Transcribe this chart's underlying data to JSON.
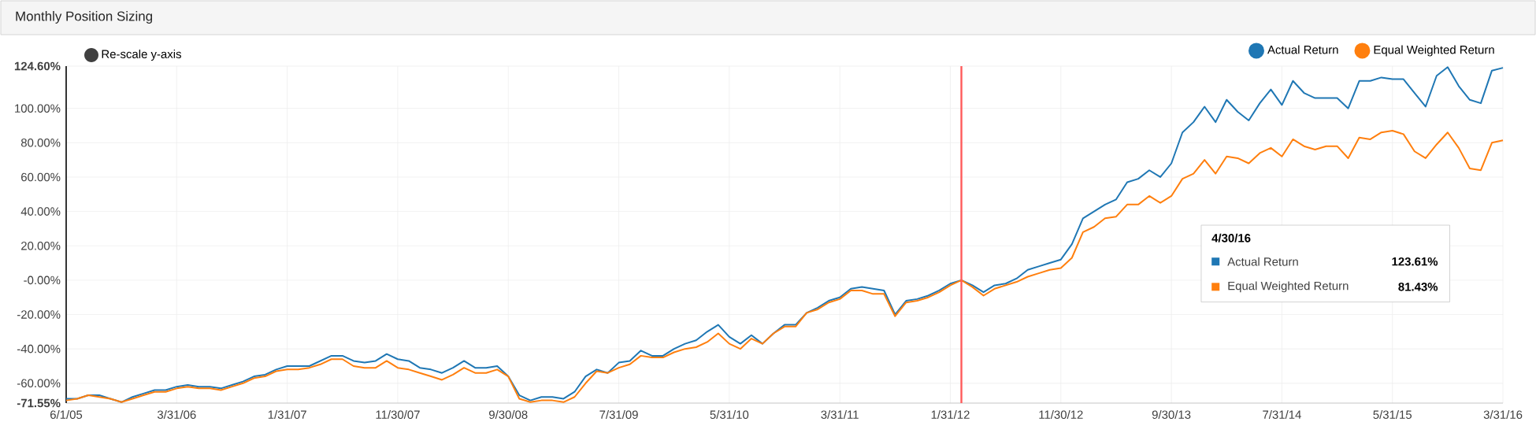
{
  "chart_data": {
    "type": "line",
    "title": "Monthly Position Sizing",
    "x": [
      "2005-06",
      "2005-07",
      "2005-08",
      "2005-09",
      "2005-10",
      "2005-11",
      "2005-12",
      "2006-01",
      "2006-02",
      "2006-03",
      "2006-04",
      "2006-05",
      "2006-06",
      "2006-07",
      "2006-08",
      "2006-09",
      "2006-10",
      "2006-11",
      "2006-12",
      "2007-01",
      "2007-02",
      "2007-03",
      "2007-04",
      "2007-05",
      "2007-06",
      "2007-07",
      "2007-08",
      "2007-09",
      "2007-10",
      "2007-11",
      "2007-12",
      "2008-01",
      "2008-02",
      "2008-03",
      "2008-04",
      "2008-05",
      "2008-06",
      "2008-07",
      "2008-08",
      "2008-09",
      "2008-10",
      "2008-11",
      "2008-12",
      "2009-01",
      "2009-02",
      "2009-03",
      "2009-04",
      "2009-05",
      "2009-06",
      "2009-07",
      "2009-08",
      "2009-09",
      "2009-10",
      "2009-11",
      "2009-12",
      "2010-01",
      "2010-02",
      "2010-03",
      "2010-04",
      "2010-05",
      "2010-06",
      "2010-07",
      "2010-08",
      "2010-09",
      "2010-10",
      "2010-11",
      "2010-12",
      "2011-01",
      "2011-02",
      "2011-03",
      "2011-04",
      "2011-05",
      "2011-06",
      "2011-07",
      "2011-08",
      "2011-09",
      "2011-10",
      "2011-11",
      "2011-12",
      "2012-01",
      "2012-02",
      "2012-03",
      "2012-04",
      "2012-05",
      "2012-06",
      "2012-07",
      "2012-08",
      "2012-09",
      "2012-10",
      "2012-11",
      "2012-12",
      "2013-01",
      "2013-02",
      "2013-03",
      "2013-04",
      "2013-05",
      "2013-06",
      "2013-07",
      "2013-08",
      "2013-09",
      "2013-10",
      "2013-11",
      "2013-12",
      "2014-01",
      "2014-02",
      "2014-03",
      "2014-04",
      "2014-05",
      "2014-06",
      "2014-07",
      "2014-08",
      "2014-09",
      "2014-10",
      "2014-11",
      "2014-12",
      "2015-01",
      "2015-02",
      "2015-03",
      "2015-04",
      "2015-05",
      "2015-06",
      "2015-07",
      "2015-08",
      "2015-09",
      "2015-10",
      "2015-11",
      "2015-12",
      "2016-01",
      "2016-02",
      "2016-03",
      "2016-04"
    ],
    "series": [
      {
        "name": "Actual Return",
        "color": "#1f77b4",
        "values": [
          -69,
          -69,
          -67,
          -67,
          -69,
          -71,
          -68,
          -66,
          -64,
          -64,
          -62,
          -61,
          -62,
          -62,
          -63,
          -61,
          -59,
          -56,
          -55,
          -52,
          -50,
          -50,
          -50,
          -47,
          -44,
          -44,
          -47,
          -48,
          -47,
          -43,
          -46,
          -47,
          -51,
          -52,
          -54,
          -51,
          -47,
          -51,
          -51,
          -50,
          -56,
          -67,
          -70,
          -68,
          -68,
          -69,
          -65,
          -56,
          -52,
          -54,
          -48,
          -47,
          -41,
          -44,
          -44,
          -40,
          -37,
          -35,
          -30,
          -26,
          -33,
          -37,
          -32,
          -37,
          -31,
          -26,
          -26,
          -19,
          -16,
          -12,
          -10,
          -5,
          -4,
          -5,
          -6,
          -20,
          -12,
          -11,
          -9,
          -6,
          -2,
          0,
          -3,
          -7,
          -3,
          -2,
          1,
          6,
          8,
          10,
          12,
          21,
          36,
          40,
          44,
          47,
          57,
          59,
          64,
          60,
          68,
          86,
          92,
          101,
          92,
          105,
          98,
          93,
          103,
          111,
          102,
          116,
          109,
          106,
          106,
          106,
          100,
          116,
          116,
          118,
          117,
          117,
          109,
          101,
          119,
          124,
          113,
          105,
          103,
          122,
          123.61
        ]
      },
      {
        "name": "Equal Weighted Return",
        "color": "#ff7f0e",
        "values": [
          -70,
          -69,
          -67,
          -68,
          -69,
          -71,
          -69,
          -67,
          -65,
          -65,
          -63,
          -62,
          -63,
          -63,
          -64,
          -62,
          -60,
          -57,
          -56,
          -53,
          -52,
          -52,
          -51,
          -49,
          -46,
          -46,
          -50,
          -51,
          -51,
          -47,
          -51,
          -52,
          -54,
          -56,
          -58,
          -55,
          -51,
          -54,
          -54,
          -52,
          -56,
          -69,
          -71,
          -70,
          -70,
          -71,
          -68,
          -60,
          -53,
          -54,
          -51,
          -49,
          -44,
          -45,
          -45,
          -42,
          -40,
          -39,
          -36,
          -31,
          -37,
          -40,
          -34,
          -37,
          -31,
          -27,
          -27,
          -19,
          -17,
          -13,
          -11,
          -6,
          -6,
          -8,
          -8,
          -21,
          -13,
          -12,
          -10,
          -7,
          -3,
          0,
          -4,
          -9,
          -5,
          -3,
          -1,
          2,
          4,
          6,
          7,
          13,
          28,
          31,
          36,
          37,
          44,
          44,
          49,
          45,
          49,
          59,
          62,
          70,
          62,
          72,
          71,
          68,
          74,
          77,
          72,
          82,
          78,
          76,
          78,
          78,
          71,
          83,
          82,
          86,
          87,
          85,
          75,
          71,
          79,
          86,
          77,
          65,
          64,
          80,
          81.43
        ]
      }
    ],
    "xlim": [
      "2005-06",
      "2016-04"
    ],
    "xticks": [
      {
        "value": "2005-06",
        "label": "6/1/05"
      },
      {
        "value": "2006-04",
        "label": "3/31/06"
      },
      {
        "value": "2007-02",
        "label": "1/31/07"
      },
      {
        "value": "2007-12",
        "label": "11/30/07"
      },
      {
        "value": "2008-10",
        "label": "9/30/08"
      },
      {
        "value": "2009-08",
        "label": "7/31/09"
      },
      {
        "value": "2010-06",
        "label": "5/31/10"
      },
      {
        "value": "2011-04",
        "label": "3/31/11"
      },
      {
        "value": "2012-02",
        "label": "1/31/12"
      },
      {
        "value": "2012-12",
        "label": "11/30/12"
      },
      {
        "value": "2013-10",
        "label": "9/30/13"
      },
      {
        "value": "2014-08",
        "label": "7/31/14"
      },
      {
        "value": "2015-06",
        "label": "5/31/15"
      },
      {
        "value": "2016-04",
        "label": "3/31/16"
      }
    ],
    "ylim": [
      -71.55,
      124.6
    ],
    "yticks": [
      {
        "value": -71.55,
        "label": "-71.55%"
      },
      {
        "value": -60,
        "label": "-60.00%"
      },
      {
        "value": -40,
        "label": "-40.00%"
      },
      {
        "value": -20,
        "label": "-20.00%"
      },
      {
        "value": 0,
        "label": "-0.00%"
      },
      {
        "value": 20,
        "label": "20.00%"
      },
      {
        "value": 40,
        "label": "40.00%"
      },
      {
        "value": 60,
        "label": "60.00%"
      },
      {
        "value": 80,
        "label": "80.00%"
      },
      {
        "value": 100,
        "label": "100.00%"
      },
      {
        "value": 124.6,
        "label": "124.60%"
      }
    ],
    "ref_lines": [
      {
        "axis": "x",
        "value": "2012-03",
        "color": "#ff5a5a"
      }
    ],
    "grid": true,
    "legend": "top right",
    "annotations": [
      "Re-scale y-axis",
      "4/30/16",
      "Actual Return",
      "123.61%",
      "Equal Weighted Return",
      "81.43%"
    ]
  }
}
